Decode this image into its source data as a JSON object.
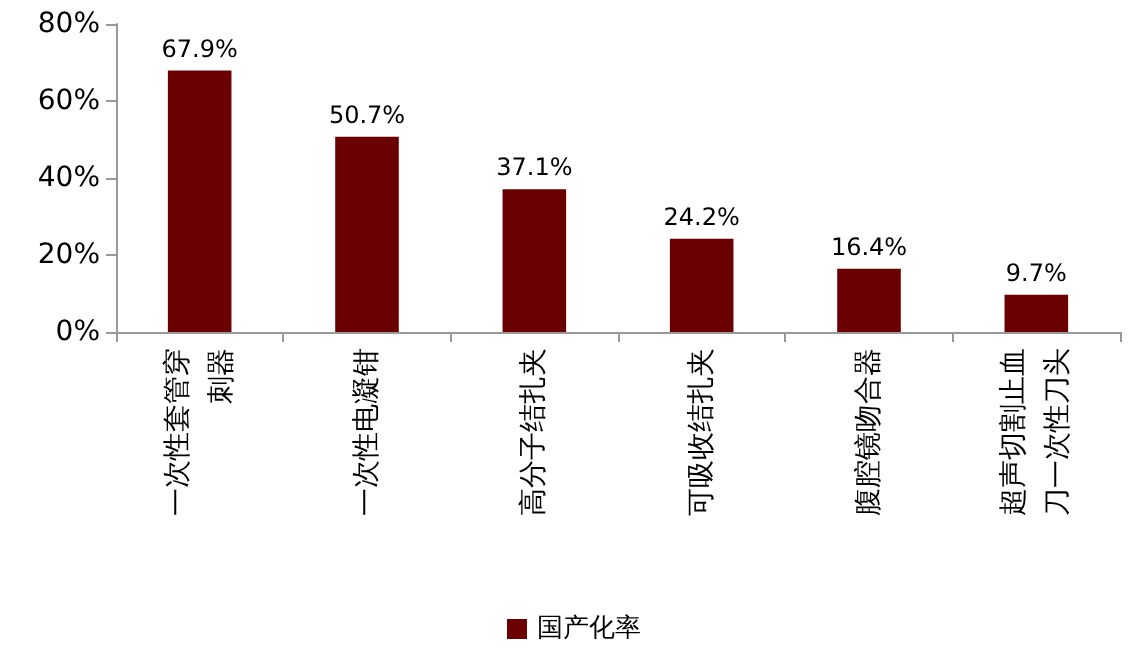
{
  "chart_data": {
    "type": "bar",
    "categories": [
      "一次性套管穿刺器",
      "一次性电凝钳",
      "高分子结扎夹",
      "可吸收结扎夹",
      "腹腔镜吻合器",
      "超声切割止血刀一次性刀头"
    ],
    "series": [
      {
        "name": "国产化率",
        "color": "#6b0000",
        "values": [
          67.9,
          50.7,
          37.1,
          24.2,
          16.4,
          9.7
        ],
        "value_labels": [
          "67.9%",
          "50.7%",
          "37.1%",
          "24.2%",
          "16.4%",
          "9.7%"
        ]
      }
    ],
    "ylim": [
      0,
      80
    ],
    "yticks": [
      {
        "value": 0,
        "label": "0%"
      },
      {
        "value": 20,
        "label": "20%"
      },
      {
        "value": 40,
        "label": "40%"
      },
      {
        "value": 60,
        "label": "60%"
      },
      {
        "value": 80,
        "label": "80%"
      }
    ],
    "grid": false,
    "legend": "bottom"
  }
}
